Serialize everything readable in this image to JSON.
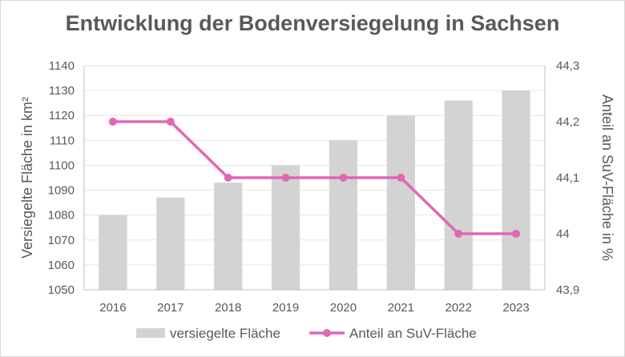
{
  "chart_data": {
    "type": "bar",
    "title": "Entwicklung der Bodenversiegelung in Sachsen",
    "categories": [
      "2016",
      "2017",
      "2018",
      "2019",
      "2020",
      "2021",
      "2022",
      "2023"
    ],
    "ylabel": "Versiegelte Fläche in km²",
    "y2label": "Anteil an SuV-Fläche in %",
    "ylim": [
      1050,
      1140
    ],
    "y2lim": [
      43.9,
      44.3
    ],
    "yticks": [
      "1050",
      "1060",
      "1070",
      "1080",
      "1090",
      "1100",
      "1110",
      "1120",
      "1130",
      "1140"
    ],
    "y2ticks": [
      "43,9",
      "44",
      "44,1",
      "44,2",
      "44,3"
    ],
    "grid": true,
    "legend": "bottom",
    "series": [
      {
        "name": "versiegelte Fläche",
        "type": "bar",
        "axis": "left",
        "color": "#d3d3d3",
        "values": [
          1080,
          1087,
          1093,
          1100,
          1110,
          1120,
          1126,
          1130
        ]
      },
      {
        "name": "Anteil an SuV-Fläche",
        "type": "line",
        "axis": "right",
        "color": "#e266b6",
        "values": [
          44.2,
          44.2,
          44.1,
          44.1,
          44.1,
          44.1,
          44.0,
          44.0
        ]
      }
    ]
  }
}
